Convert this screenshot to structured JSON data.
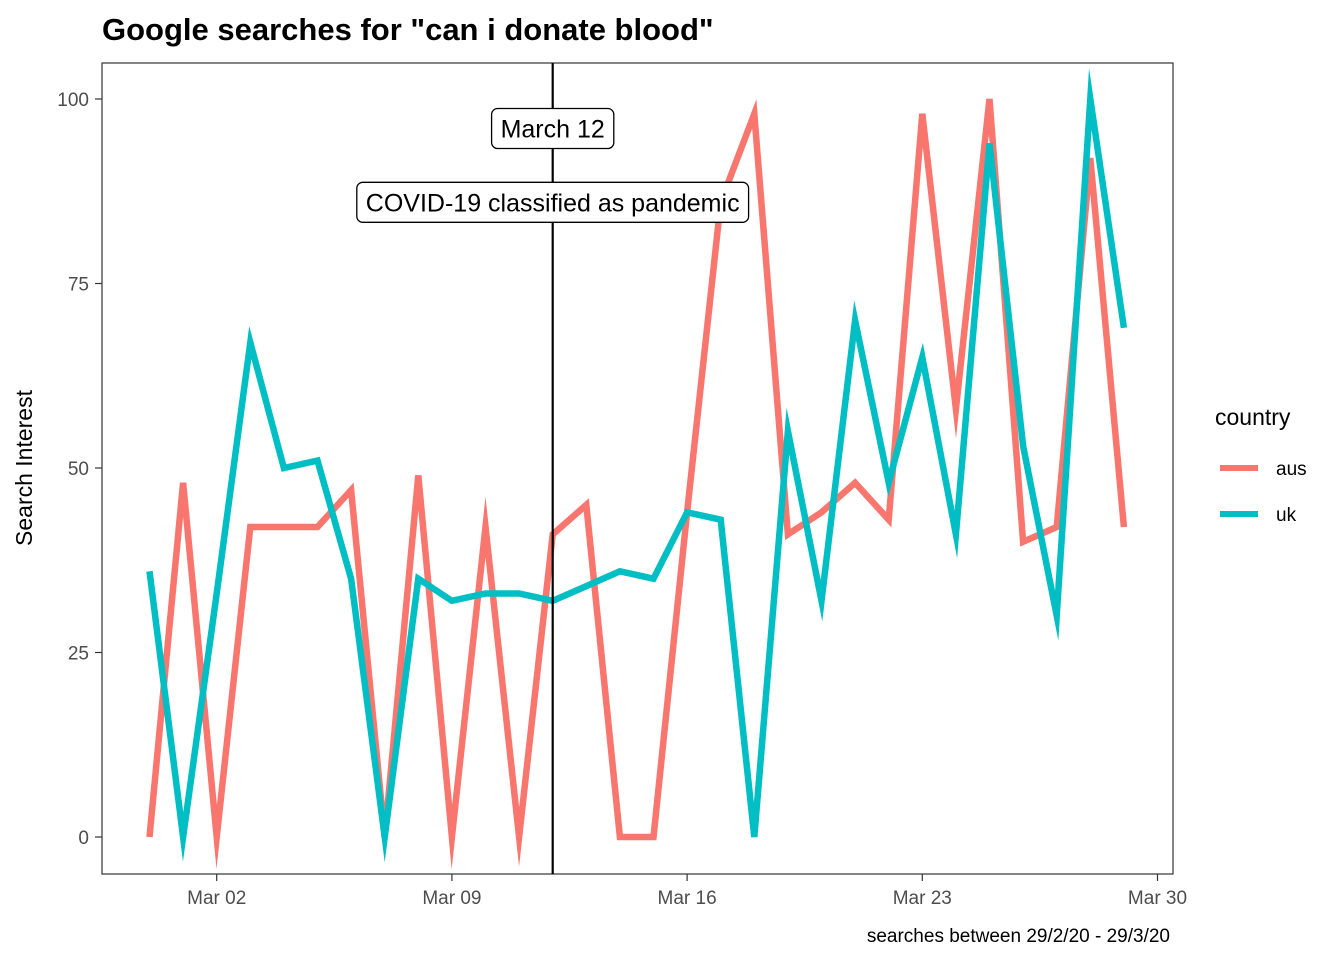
{
  "chart_data": {
    "type": "line",
    "title": "Google searches for \"can i donate blood\"",
    "xlabel": "",
    "ylabel": "Search Interest",
    "caption": "searches between 29/2/20 - 29/3/20",
    "x_start": "2020-02-29",
    "x": [
      "2020-02-29",
      "2020-03-01",
      "2020-03-02",
      "2020-03-03",
      "2020-03-04",
      "2020-03-05",
      "2020-03-06",
      "2020-03-07",
      "2020-03-08",
      "2020-03-09",
      "2020-03-10",
      "2020-03-11",
      "2020-03-12",
      "2020-03-13",
      "2020-03-14",
      "2020-03-15",
      "2020-03-16",
      "2020-03-17",
      "2020-03-18",
      "2020-03-19",
      "2020-03-20",
      "2020-03-21",
      "2020-03-22",
      "2020-03-23",
      "2020-03-24",
      "2020-03-25",
      "2020-03-26",
      "2020-03-27",
      "2020-03-28",
      "2020-03-29"
    ],
    "x_tick_labels": [
      "Mar 02",
      "Mar 09",
      "Mar 16",
      "Mar 23",
      "Mar 30"
    ],
    "x_tick_dates": [
      "2020-03-02",
      "2020-03-09",
      "2020-03-16",
      "2020-03-23",
      "2020-03-30"
    ],
    "ylim": [
      -5,
      105
    ],
    "y_ticks": [
      0,
      25,
      50,
      75,
      100
    ],
    "grid": false,
    "legend": {
      "title": "country",
      "position": "right"
    },
    "series": [
      {
        "name": "aus",
        "color": "#F8766D",
        "values": [
          0,
          48,
          0,
          42,
          42,
          42,
          47,
          0,
          49,
          0,
          42,
          0,
          41,
          45,
          0,
          0,
          44,
          86,
          98,
          41,
          44,
          48,
          43,
          98,
          58,
          100,
          40,
          42,
          92,
          42
        ]
      },
      {
        "name": "uk",
        "color": "#00BFC4",
        "values": [
          36,
          0,
          33,
          67,
          50,
          51,
          35,
          0,
          35,
          32,
          33,
          33,
          32,
          34,
          36,
          35,
          44,
          43,
          0,
          55,
          32,
          70,
          48,
          65,
          41,
          94,
          53,
          30,
          100,
          69
        ]
      }
    ],
    "annotations": {
      "vline_date": "2020-03-12",
      "labels": [
        {
          "text": "March 12",
          "y": 96
        },
        {
          "text": "COVID-19 classified as pandemic",
          "y": 86
        }
      ]
    }
  }
}
